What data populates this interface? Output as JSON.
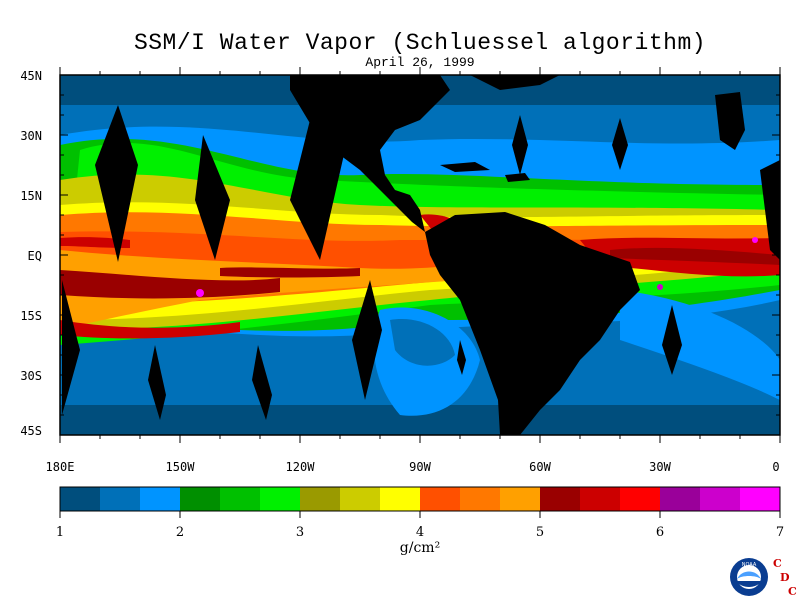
{
  "title": "SSM/I Water Vapor (Schluessel algorithm)",
  "date": "April 26, 1999",
  "lat_labels": [
    "45N",
    "30N",
    "15N",
    "EQ",
    "15S",
    "30S",
    "45S"
  ],
  "lon_labels": [
    "180E",
    "150W",
    "120W",
    "90W",
    "60W",
    "30W",
    "0"
  ],
  "colorbar": {
    "colors": [
      "#004e7d",
      "#0070b8",
      "#0094ff",
      "#008f00",
      "#00c000",
      "#00f000",
      "#9a9a00",
      "#cccc00",
      "#ffff00",
      "#ff5000",
      "#ff7800",
      "#ffa000",
      "#9a0000",
      "#cc0000",
      "#ff0000",
      "#9a009a",
      "#cc00cc",
      "#ff00ff"
    ],
    "tick_labels": [
      "1",
      "2",
      "3",
      "4",
      "5",
      "6",
      "7"
    ],
    "unit": "g/cm²"
  },
  "logo": {
    "emblem": "NOAA",
    "letters": [
      "C",
      "D",
      "C"
    ]
  },
  "colors": {
    "land": "#000000",
    "text": "#000000"
  }
}
